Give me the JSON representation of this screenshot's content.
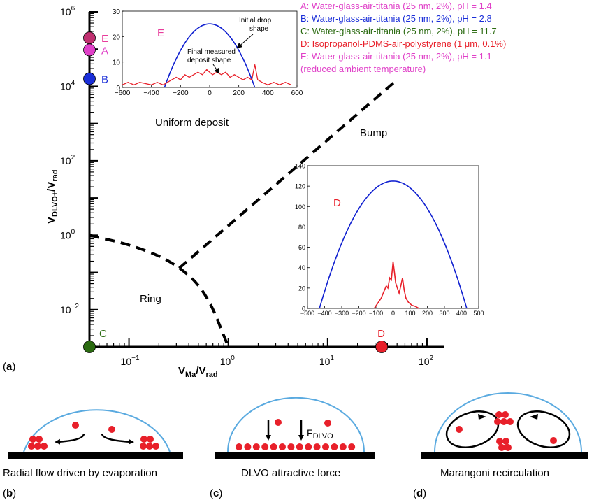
{
  "colors": {
    "A": "#e040c8",
    "B": "#1a2ed8",
    "C": "#2a6a10",
    "D": "#e8202a",
    "E": "#c03070",
    "E_text": "#e83c9c",
    "curve_blue": "#1020d0",
    "curve_red": "#e8202a",
    "drop_outline": "#5aaae0",
    "particle": "#e8202a"
  },
  "chart_data": [
    {
      "type": "phase-diagram",
      "panel_label": "a",
      "xlabel_main": "V",
      "xlabel_sub_num": "Ma",
      "xlabel_sub_den": "rad",
      "ylabel_main": "V",
      "ylabel_sub_num": "DLVO+",
      "ylabel_sub_den": "rad",
      "x_scale": "log",
      "y_scale": "log",
      "xlim": [
        0.04,
        150
      ],
      "ylim": [
        0.001,
        1000000
      ],
      "x_ticks": [
        {
          "value": 0.1,
          "base": "10",
          "exp": "−1"
        },
        {
          "value": 1,
          "base": "10",
          "exp": "0"
        },
        {
          "value": 10,
          "base": "10",
          "exp": "1"
        },
        {
          "value": 100,
          "base": "10",
          "exp": "2"
        }
      ],
      "y_ticks": [
        {
          "value": 0.01,
          "base": "10",
          "exp": "−2"
        },
        {
          "value": 1,
          "base": "10",
          "exp": "0"
        },
        {
          "value": 100,
          "base": "10",
          "exp": "2"
        },
        {
          "value": 10000,
          "base": "10",
          "exp": "4"
        },
        {
          "value": 1000000,
          "base": "10",
          "exp": "6"
        }
      ],
      "regions": [
        "Uniform deposit",
        "Bump",
        "Ring"
      ],
      "boundaries": [
        {
          "name": "ring-boundary",
          "points": [
            [
              0.04,
              1.0
            ],
            [
              0.12,
              0.5
            ],
            [
              0.3,
              0.17
            ],
            [
              0.6,
              0.03
            ],
            [
              1.0,
              0.001
            ]
          ]
        },
        {
          "name": "bump-boundary",
          "points": [
            [
              0.32,
              0.13
            ],
            [
              50,
              15000
            ]
          ]
        }
      ],
      "points": [
        {
          "label": "E",
          "x": 0.04,
          "y": 200000
        },
        {
          "label": "A",
          "x": 0.04,
          "y": 95000
        },
        {
          "label": "B",
          "x": 0.04,
          "y": 16000
        },
        {
          "label": "C",
          "x": 0.04,
          "y": 0.001
        },
        {
          "label": "D",
          "x": 35,
          "y": 0.001
        }
      ],
      "legend": [
        {
          "key": "A",
          "text": "A: Water-glass-air-titania (25 nm, 2%), pH = 1.4"
        },
        {
          "key": "B",
          "text": "B: Water-glass-air-titania (25 nm, 2%), pH = 2.8"
        },
        {
          "key": "C",
          "text": "C: Water-glass-air-titania (25 nm, 2%), pH = 11.7"
        },
        {
          "key": "D",
          "text": "D: Isopropanol-PDMS-air-polystyrene (1 μm, 0.1%)"
        },
        {
          "key": "E",
          "text": "E: Water-glass-air-titania (25 nm, 2%), pH = 1.1"
        },
        {
          "key": "E",
          "text": "(reduced ambient temperature)"
        }
      ]
    },
    {
      "type": "line",
      "inset": "E",
      "label": "E",
      "xlim": [
        -600,
        600
      ],
      "ylim": [
        0,
        30
      ],
      "x_ticks": [
        -600,
        -400,
        -200,
        0,
        200,
        400,
        600
      ],
      "y_ticks": [
        0,
        10,
        20,
        30
      ],
      "annotations": [
        "Initial drop",
        "shape",
        "Final measured",
        "deposit shape"
      ],
      "series": [
        {
          "name": "initial",
          "color": "blue",
          "type": "parabola",
          "x_min": -310,
          "x_max": 310,
          "peak": 25
        },
        {
          "name": "final",
          "color": "red",
          "x": [
            -600,
            -560,
            -520,
            -480,
            -440,
            -400,
            -360,
            -320,
            -290,
            -260,
            -230,
            -200,
            -170,
            -140,
            -110,
            -80,
            -50,
            -20,
            0,
            20,
            50,
            80,
            110,
            140,
            170,
            200,
            230,
            260,
            290,
            310,
            330,
            360,
            400,
            440,
            480,
            520,
            560
          ],
          "y": [
            1,
            2,
            1,
            2,
            1.5,
            1,
            2,
            1,
            2,
            3,
            4,
            3,
            5,
            4,
            5,
            6,
            5,
            7,
            6,
            5,
            6,
            5,
            6,
            4,
            5,
            4,
            3,
            4,
            3,
            9,
            3,
            2,
            1,
            2,
            1,
            2,
            1
          ]
        }
      ]
    },
    {
      "type": "line",
      "inset": "D",
      "label": "D",
      "xlim": [
        -500,
        500
      ],
      "ylim": [
        0,
        140
      ],
      "x_ticks": [
        -500,
        -400,
        -300,
        -200,
        -100,
        0,
        100,
        200,
        300,
        400,
        500
      ],
      "y_ticks": [
        0,
        20,
        40,
        60,
        80,
        100,
        120,
        140
      ],
      "series": [
        {
          "name": "initial",
          "color": "blue",
          "type": "parabola",
          "x_min": -430,
          "x_max": 430,
          "peak": 125
        },
        {
          "name": "final",
          "color": "red",
          "x": [
            -110,
            -90,
            -70,
            -55,
            -40,
            -30,
            -20,
            -10,
            0,
            8,
            15,
            25,
            35,
            45,
            55,
            65,
            75,
            90,
            110,
            130,
            150
          ],
          "y": [
            0,
            5,
            10,
            16,
            22,
            20,
            30,
            28,
            46,
            35,
            25,
            20,
            15,
            22,
            30,
            18,
            10,
            6,
            3,
            2,
            0
          ]
        }
      ]
    }
  ],
  "panel_a_label": "a",
  "schematics": [
    {
      "label": "b",
      "caption": "Radial flow driven by evaporation"
    },
    {
      "label": "c",
      "caption": "DLVO attractive force",
      "force_main": "F",
      "force_sub": "DLVO"
    },
    {
      "label": "d",
      "caption": "Marangoni recirculation"
    }
  ]
}
